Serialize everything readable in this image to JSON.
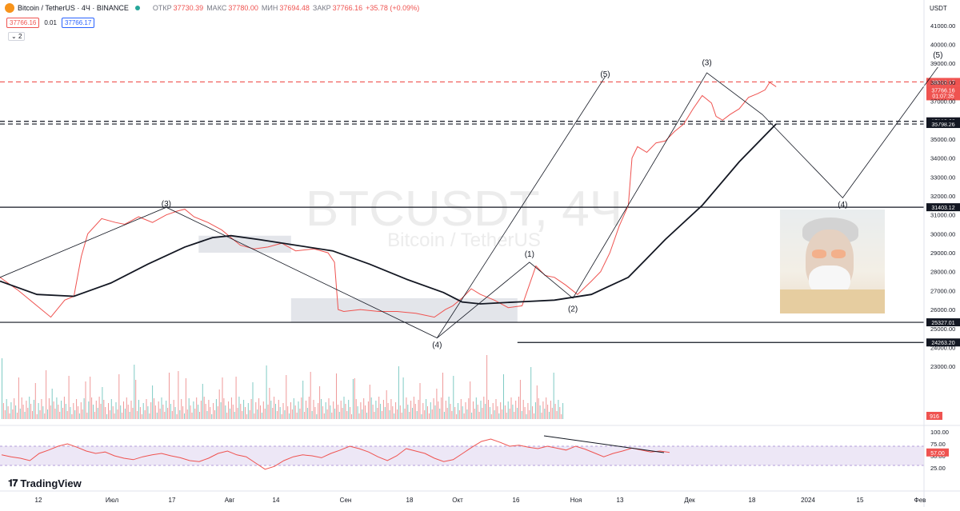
{
  "header": {
    "title": "Bitcoin / TetherUS · 4Ч · BINANCE",
    "open_label": "ОТКР",
    "open": "37730.39",
    "high_label": "МАКС",
    "high": "37780.00",
    "low_label": "МИН",
    "low": "37694.48",
    "close_label": "ЗАКР",
    "close": "37766.16",
    "change": "+35.78 (+0.09%)",
    "bid": "37766.16",
    "spread": "0.01",
    "ask": "37766.17",
    "indicators_count": "2"
  },
  "axis_currency": "USDT",
  "watermark": {
    "symbol": "BTCUSDT, 4Ч",
    "name": "Bitcoin / TetherUS"
  },
  "brand": "TradingView",
  "colors": {
    "up": "#26a69a",
    "down": "#ef5350",
    "price_line": "#ef5350",
    "ma": "#131722",
    "rsi_band": "#ede7f6",
    "volume": "#ef9a9a"
  },
  "chart_data": {
    "type": "line",
    "title": "BTCUSDT, 4Ч",
    "xlabel": "",
    "ylabel": "",
    "x_ticks": [
      "12",
      "Июл",
      "17",
      "Авг",
      "14",
      "Сен",
      "18",
      "Окт",
      "16",
      "Ноя",
      "13",
      "Дек",
      "18",
      "2024",
      "15",
      "Фев"
    ],
    "y_ticks": [
      "41000.00",
      "40000.00",
      "39000.00",
      "38000.00",
      "37000.00",
      "36000.00",
      "35000.00",
      "34000.00",
      "33000.00",
      "32000.00",
      "31000.00",
      "30000.00",
      "29000.00",
      "28000.00",
      "27000.00",
      "26000.00",
      "25000.00",
      "24000.00",
      "23000.00"
    ],
    "ylim": [
      22500,
      41500
    ],
    "xlim": [
      0,
      1000
    ],
    "series": [
      {
        "values_x": [
          0,
          20,
          40,
          55,
          70,
          80,
          88,
          95,
          110,
          125,
          135,
          150,
          165,
          180,
          192,
          200,
          210,
          225,
          240,
          250,
          260,
          275,
          290,
          305,
          320,
          340,
          355,
          362,
          366,
          372,
          390,
          410,
          430,
          450,
          470,
          482,
          490,
          500,
          510,
          520,
          535,
          550,
          565,
          580,
          590,
          600,
          612,
          625,
          640,
          650,
          660,
          670,
          680,
          684,
          690,
          700,
          710,
          720,
          730,
          740,
          750,
          760,
          770,
          775,
          782,
          790,
          800,
          810,
          820,
          828,
          833,
          840
        ],
        "values_y": [
          27700,
          27000,
          26200,
          25600,
          26500,
          26700,
          28800,
          30000,
          30800,
          30600,
          30500,
          30900,
          30600,
          31000,
          31200,
          31300,
          30900,
          30600,
          30200,
          29800,
          29400,
          29200,
          29300,
          29500,
          29100,
          29200,
          29000,
          28500,
          26000,
          25900,
          26000,
          25900,
          25900,
          25800,
          25600,
          26000,
          26200,
          26600,
          27100,
          26800,
          26500,
          26100,
          26200,
          28300,
          27800,
          27700,
          27300,
          26800,
          27500,
          28000,
          29000,
          30400,
          31500,
          34000,
          34600,
          34300,
          34800,
          34900,
          35400,
          35800,
          36600,
          37300,
          36900,
          36200,
          36000,
          36300,
          36600,
          37200,
          37400,
          37600,
          38000,
          37766
        ]
      }
    ],
    "ma_x": [
      0,
      40,
      80,
      120,
      160,
      200,
      230,
      250,
      280,
      320,
      360,
      400,
      440,
      480,
      500,
      520,
      560,
      600,
      640,
      680,
      700,
      720,
      760,
      800,
      840
    ],
    "ma_y": [
      27500,
      26800,
      26700,
      27400,
      28400,
      29300,
      29800,
      29900,
      29700,
      29400,
      29100,
      28400,
      27600,
      26900,
      26400,
      26300,
      26400,
      26500,
      26800,
      27700,
      28700,
      29700,
      31500,
      33800,
      35800
    ],
    "levels": [
      {
        "label": "38019.17",
        "value": 38019.17,
        "style": "dashed",
        "color": "#ef5350"
      },
      {
        "label": "35937.55",
        "value": 35937.55,
        "style": "dashed",
        "color": "#131722"
      },
      {
        "label": "35798.26",
        "value": 35798.26,
        "style": "dashed",
        "color": "#131722"
      },
      {
        "label": "31403.12",
        "value": 31403.12,
        "style": "solid",
        "color": "#131722"
      },
      {
        "label": "25327.01",
        "value": 25327.01,
        "style": "solid",
        "color": "#131722"
      },
      {
        "label": "24263.20",
        "value": 24263.2,
        "style": "solid",
        "color": "#131722"
      }
    ],
    "price_label": "37766.16",
    "countdown": "01:07:35",
    "volume_label": "916",
    "rsi": {
      "label": "57.00",
      "ticks": [
        "100.00",
        "75.00",
        "50.00",
        "25.00"
      ],
      "band": [
        30,
        70
      ],
      "values": [
        52,
        48,
        45,
        40,
        55,
        62,
        70,
        75,
        68,
        60,
        55,
        58,
        50,
        45,
        42,
        48,
        52,
        55,
        50,
        46,
        40,
        38,
        45,
        55,
        60,
        52,
        48,
        35,
        22,
        28,
        40,
        48,
        52,
        50,
        46,
        55,
        62,
        70,
        65,
        58,
        48,
        40,
        50,
        65,
        60,
        55,
        45,
        38,
        42,
        55,
        68,
        80,
        85,
        78,
        70,
        72,
        68,
        65,
        70,
        66,
        62,
        70,
        64,
        56,
        48,
        55,
        60,
        66,
        62,
        58,
        60,
        57
      ]
    },
    "annotations": [
      {
        "text": "(3)",
        "x": 180,
        "y": 31450
      },
      {
        "text": "(4)",
        "x": 473,
        "y": 24000
      },
      {
        "text": "(1)",
        "x": 573,
        "y": 28800
      },
      {
        "text": "(2)",
        "x": 620,
        "y": 25900
      },
      {
        "text": "(5)",
        "x": 655,
        "y": 38300
      },
      {
        "text": "(3)",
        "x": 765,
        "y": 38900
      },
      {
        "text": "(4)",
        "x": 912,
        "y": 31400
      },
      {
        "text": "(5)",
        "x": 1015,
        "y": 39300
      }
    ]
  }
}
